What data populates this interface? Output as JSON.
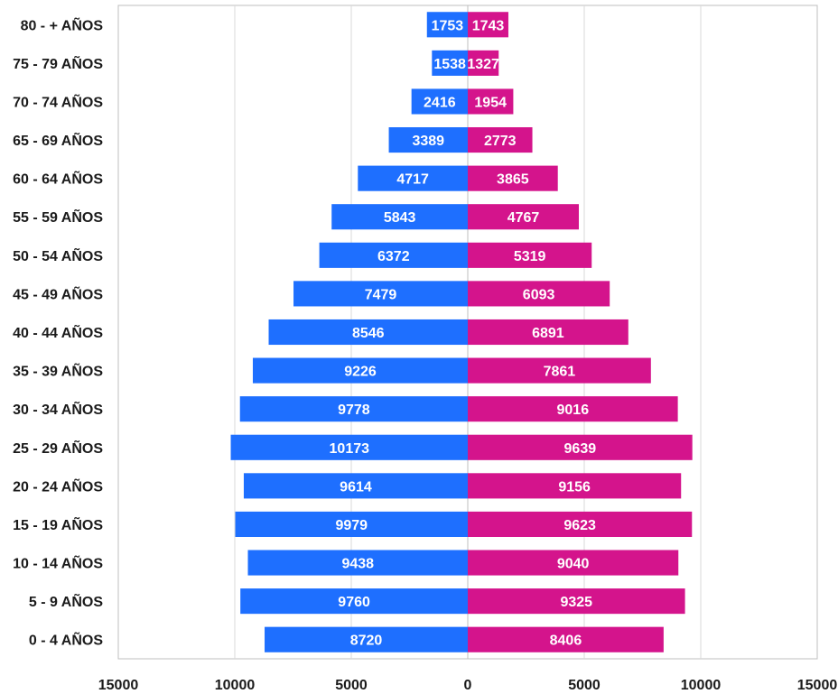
{
  "chart_data": {
    "type": "bar",
    "orientation": "horizontal",
    "layout": "population-pyramid",
    "title": "",
    "xlabel": "",
    "ylabel": "",
    "categories": [
      "80 - + AÑOS",
      "75 - 79 AÑOS",
      "70 - 74 AÑOS",
      "65 - 69 AÑOS",
      "60 - 64 AÑOS",
      "55 - 59 AÑOS",
      "50 - 54 AÑOS",
      "45 - 49 AÑOS",
      "40 - 44 AÑOS",
      "35 - 39 AÑOS",
      "30 - 34 AÑOS",
      "25 - 29 AÑOS",
      "20 - 24 AÑOS",
      "15 - 19 AÑOS",
      "10 - 14 AÑOS",
      "5 - 9 AÑOS",
      "0 - 4 AÑOS"
    ],
    "series": [
      {
        "side": "left",
        "color": "#1e6fff",
        "values": [
          1753,
          1538,
          2416,
          3389,
          4717,
          5843,
          6372,
          7479,
          8546,
          9226,
          9778,
          10173,
          9614,
          9979,
          9438,
          9760,
          8720
        ]
      },
      {
        "side": "right",
        "color": "#d4148c",
        "values": [
          1743,
          1327,
          1954,
          2773,
          3865,
          4767,
          5319,
          6093,
          6891,
          7861,
          9016,
          9639,
          9156,
          9623,
          9040,
          9325,
          8406
        ]
      }
    ],
    "xlim": [
      -15000,
      15000
    ],
    "x_ticks": [
      -15000,
      -10000,
      -5000,
      0,
      5000,
      10000,
      15000
    ],
    "x_tick_labels": [
      "15000",
      "10000",
      "5000",
      "0",
      "5000",
      "10000",
      "15000"
    ],
    "grid": true,
    "legend": "none",
    "gridline_color": "#d9d9d9",
    "frame_color": "#bfbfbf"
  }
}
